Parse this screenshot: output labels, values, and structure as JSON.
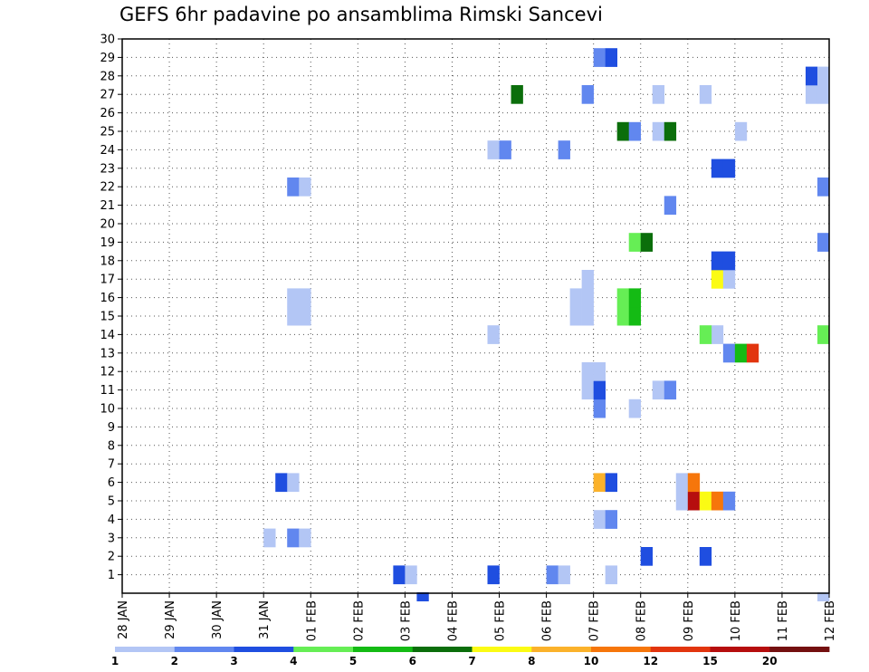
{
  "chart_data": {
    "type": "heatmap",
    "title": "GEFS 6hr padavine po ansamblima Rimski Sancevi",
    "xlabel": "",
    "ylabel": "",
    "x_tick_labels": [
      "28 JAN",
      "29 JAN",
      "30 JAN",
      "31 JAN",
      "01 FEB",
      "02 FEB",
      "03 FEB",
      "04 FEB",
      "05 FEB",
      "06 FEB",
      "07 FEB",
      "08 FEB",
      "09 FEB",
      "10 FEB",
      "11 FEB",
      "12 FEB"
    ],
    "y_tick_labels": [
      "1",
      "2",
      "3",
      "4",
      "5",
      "6",
      "7",
      "8",
      "9",
      "10",
      "11",
      "12",
      "13",
      "14",
      "15",
      "16",
      "17",
      "18",
      "19",
      "20",
      "21",
      "22",
      "23",
      "24",
      "25",
      "26",
      "27",
      "28",
      "29",
      "30"
    ],
    "ylim": [
      0,
      30
    ],
    "x_step_hours": 6,
    "grid": true,
    "colorbar": {
      "labels": [
        "1",
        "2",
        "3",
        "4",
        "5",
        "6",
        "7",
        "8",
        "10",
        "12",
        "15",
        "20"
      ],
      "colors": [
        "#b3c6f5",
        "#6187ef",
        "#1f4ee0",
        "#66ee55",
        "#14bb14",
        "#0b6e0b",
        "#fbfb14",
        "#fbb22b",
        "#f6760b",
        "#e2350e",
        "#b60e0e",
        "#741010"
      ]
    },
    "cells_format": [
      "step_index_from_28_JAN_00h",
      "member",
      "color_index"
    ],
    "cells": [
      [
        23,
        1,
        2
      ],
      [
        24,
        1,
        0
      ],
      [
        31,
        1,
        2
      ],
      [
        36,
        1,
        1
      ],
      [
        37,
        1,
        0
      ],
      [
        41,
        1,
        0
      ],
      [
        44,
        2,
        2
      ],
      [
        49,
        2,
        2
      ],
      [
        12,
        3,
        0
      ],
      [
        14,
        3,
        1
      ],
      [
        15,
        3,
        0
      ],
      [
        40,
        4,
        0
      ],
      [
        41,
        4,
        1
      ],
      [
        47,
        5,
        0
      ],
      [
        48,
        5,
        10
      ],
      [
        49,
        5,
        6
      ],
      [
        50,
        5,
        8
      ],
      [
        51,
        5,
        1
      ],
      [
        13,
        6,
        2
      ],
      [
        14,
        6,
        0
      ],
      [
        40,
        6,
        7
      ],
      [
        41,
        6,
        2
      ],
      [
        47,
        6,
        0
      ],
      [
        48,
        6,
        8
      ],
      [
        40,
        10,
        1
      ],
      [
        43,
        10,
        0
      ],
      [
        39,
        11,
        0
      ],
      [
        40,
        11,
        2
      ],
      [
        45,
        11,
        0
      ],
      [
        46,
        11,
        1
      ],
      [
        39,
        12,
        0
      ],
      [
        40,
        12,
        0
      ],
      [
        51,
        13,
        1
      ],
      [
        52,
        13,
        4
      ],
      [
        53,
        13,
        9
      ],
      [
        31,
        14,
        0
      ],
      [
        50,
        14,
        0
      ],
      [
        49,
        14,
        3
      ],
      [
        59,
        14,
        3
      ],
      [
        14,
        15,
        0
      ],
      [
        15,
        15,
        0
      ],
      [
        38,
        15,
        0
      ],
      [
        39,
        15,
        0
      ],
      [
        42,
        15,
        3
      ],
      [
        43,
        15,
        4
      ],
      [
        14,
        16,
        0
      ],
      [
        15,
        16,
        0
      ],
      [
        38,
        16,
        0
      ],
      [
        39,
        16,
        0
      ],
      [
        42,
        16,
        3
      ],
      [
        43,
        16,
        4
      ],
      [
        39,
        17,
        0
      ],
      [
        50,
        17,
        6
      ],
      [
        51,
        17,
        0
      ],
      [
        50,
        18,
        2
      ],
      [
        51,
        18,
        2
      ],
      [
        43,
        19,
        3
      ],
      [
        44,
        19,
        5
      ],
      [
        59,
        19,
        1
      ],
      [
        46,
        21,
        1
      ],
      [
        14,
        22,
        1
      ],
      [
        15,
        22,
        0
      ],
      [
        59,
        22,
        1
      ],
      [
        50,
        23,
        2
      ],
      [
        51,
        23,
        2
      ],
      [
        31,
        24,
        0
      ],
      [
        32,
        24,
        1
      ],
      [
        37,
        24,
        1
      ],
      [
        42,
        25,
        5
      ],
      [
        43,
        25,
        1
      ],
      [
        45,
        25,
        0
      ],
      [
        46,
        25,
        5
      ],
      [
        52,
        25,
        0
      ],
      [
        33,
        27,
        5
      ],
      [
        39,
        27,
        1
      ],
      [
        45,
        27,
        0
      ],
      [
        49,
        27,
        0
      ],
      [
        58,
        27,
        0
      ],
      [
        59,
        27,
        0
      ],
      [
        58,
        28,
        2
      ],
      [
        59,
        28,
        0
      ],
      [
        40,
        29,
        1
      ],
      [
        41,
        29,
        2
      ]
    ],
    "below_axis_cells": [
      [
        25,
        2
      ],
      [
        59,
        0
      ]
    ]
  }
}
